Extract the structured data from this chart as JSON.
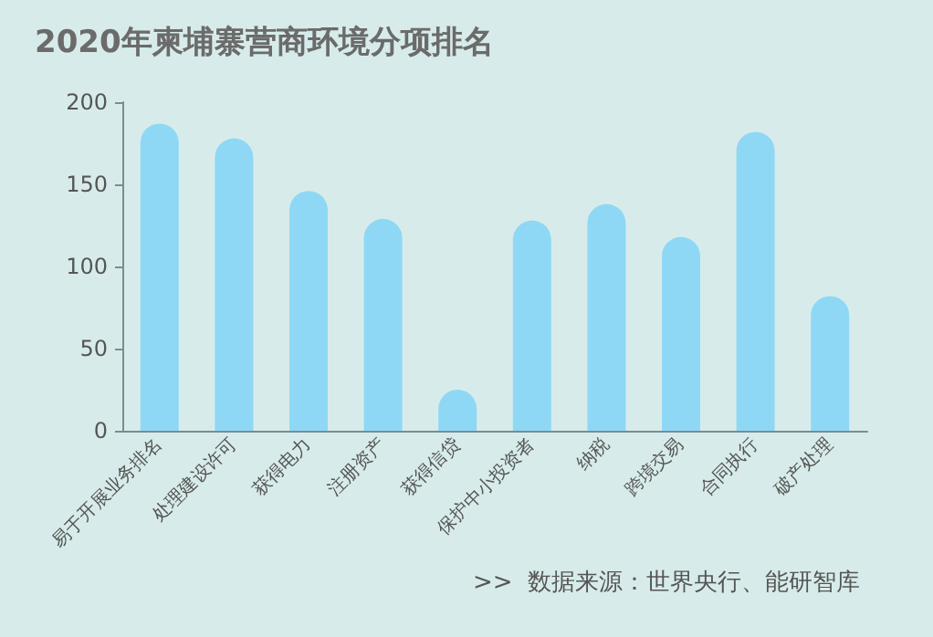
{
  "chart_data": {
    "type": "bar",
    "title": "2020年柬埔寨营商环境分项排名",
    "categories": [
      "易于开展业务排名",
      "处理建设许可",
      "获得电力",
      "注册资产",
      "获得信贷",
      "保护中小投资者",
      "纳税",
      "跨境交易",
      "合同执行",
      "破产处理"
    ],
    "values": [
      187,
      178,
      146,
      129,
      25,
      128,
      138,
      118,
      182,
      82
    ],
    "color": "#8ed8f6",
    "ylim": [
      0,
      200
    ],
    "yticks": [
      0,
      50,
      100,
      150,
      200
    ],
    "annotations": [
      ">>  数据来源：世界央行、能研智库"
    ]
  }
}
